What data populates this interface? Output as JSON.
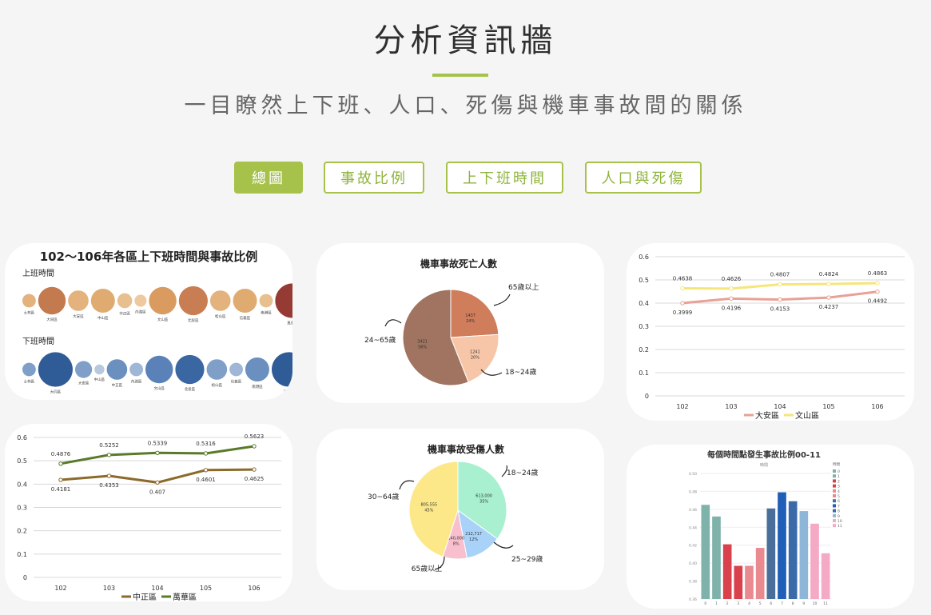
{
  "header": {
    "title": "分析資訊牆",
    "subtitle": "一目瞭然上下班、人口、死傷與機車事故間的關係"
  },
  "tabs": [
    {
      "label": "總圖",
      "active": true
    },
    {
      "label": "事故比例",
      "active": false
    },
    {
      "label": "上下班時間",
      "active": false
    },
    {
      "label": "人口與死傷",
      "active": false
    }
  ],
  "colors": {
    "accent": "#a6c24a"
  },
  "chart_data": [
    {
      "type": "bubble",
      "title": "102～106年各區上下班時間與事故比例",
      "groups": [
        {
          "name": "上班時間",
          "labels": [
            "士林區",
            "大同區",
            "大安區",
            "中山區",
            "中正區",
            "內湖區",
            "文山區",
            "北投區",
            "松山區",
            "信義區",
            "南港區",
            "萬華區"
          ],
          "values": [
            1,
            3,
            2,
            2.5,
            1.2,
            0.8,
            3,
            3.2,
            2,
            2.5,
            1,
            4
          ]
        },
        {
          "name": "下班時間",
          "labels": [
            "士林區",
            "大同區",
            "大安區",
            "中山區",
            "中正區",
            "內湖區",
            "文山區",
            "北投區",
            "松山區",
            "信義區",
            "南港區",
            "萬華區"
          ],
          "values": [
            1,
            4,
            1.5,
            0.5,
            2,
            1,
            3,
            3.2,
            2,
            1,
            2.5,
            4
          ]
        }
      ]
    },
    {
      "type": "pie",
      "title": "機車事故死亡人數",
      "slices": [
        {
          "label": "65歲以上",
          "value": 1437,
          "pct": "24%",
          "color": "#d07d5c"
        },
        {
          "label": "18~24歲",
          "value": 1241,
          "pct": "20%",
          "color": "#f7c6a8"
        },
        {
          "label": "24~65歲",
          "value": 3421,
          "pct": "56%",
          "color": "#a07460"
        }
      ]
    },
    {
      "type": "line",
      "x": [
        "102",
        "103",
        "104",
        "105",
        "106"
      ],
      "ylim": [
        0,
        0.6
      ],
      "yticks": [
        "0",
        "0.1",
        "0.2",
        "0.3",
        "0.4",
        "0.5",
        "0.6"
      ],
      "series": [
        {
          "name": "大安區",
          "color": "#e8a196",
          "values": [
            0.3999,
            0.4196,
            0.4153,
            0.4237,
            0.4492
          ]
        },
        {
          "name": "文山區",
          "color": "#f5e67a",
          "values": [
            0.4638,
            0.4626,
            0.4807,
            0.4824,
            0.4863
          ]
        }
      ],
      "labels": [
        {
          "series": 0,
          "text": [
            "0.3999",
            "0.4196",
            "0.4153",
            "0.4237",
            "0.4492"
          ]
        },
        {
          "series": 1,
          "text": [
            "0.4638",
            "0.4626",
            "0.4807",
            "0.4824",
            "0.4863"
          ]
        }
      ]
    },
    {
      "type": "line",
      "x": [
        "102",
        "103",
        "104",
        "105",
        "106"
      ],
      "ylim": [
        0,
        0.6
      ],
      "yticks": [
        "0",
        "0.1",
        "0.2",
        "0.3",
        "0.4",
        "0.5",
        "0.6"
      ],
      "series": [
        {
          "name": "中正區",
          "color": "#8b6a2b",
          "values": [
            0.4181,
            0.4353,
            0.407,
            0.4601,
            0.4625
          ]
        },
        {
          "name": "萬華區",
          "color": "#5a7a2a",
          "values": [
            0.4876,
            0.5252,
            0.5339,
            0.5316,
            0.5623
          ]
        }
      ],
      "labels": [
        {
          "series": 0,
          "text": [
            "0.4181",
            "0.4353",
            "0.407",
            "0.4601",
            "0.4625"
          ]
        },
        {
          "series": 1,
          "text": [
            "0.4876",
            "0.5252",
            "0.5339",
            "0.5316",
            "0.5623"
          ]
        }
      ]
    },
    {
      "type": "pie",
      "title": "機車事故受傷人數",
      "slices": [
        {
          "label": "18~24歲",
          "value": "613,000",
          "pct": "35%",
          "color": "#a8f0d0"
        },
        {
          "label": "25~29歲",
          "value": "212,717",
          "pct": "12%",
          "color": "#a8d2f8"
        },
        {
          "label": "65歲以上",
          "value": "140,000",
          "pct": "8%",
          "color": "#f8c0cf"
        },
        {
          "label": "30~64歲",
          "value": "805,555",
          "pct": "45%",
          "color": "#fce889"
        }
      ]
    },
    {
      "type": "bar",
      "title": "每個時間點發生事故比例00-11",
      "subtitle": "時間",
      "legend_title": "時間",
      "categories": [
        "0",
        "1",
        "2",
        "3",
        "4",
        "5",
        "6",
        "7",
        "8",
        "9",
        "10",
        "11"
      ],
      "values": [
        0.465,
        0.452,
        0.421,
        0.397,
        0.397,
        0.417,
        0.461,
        0.479,
        0.469,
        0.458,
        0.444,
        0.411
      ],
      "colors": [
        "#7fb2ab",
        "#7fb2ab",
        "#d9424c",
        "#d9424c",
        "#e88a8f",
        "#e88a8f",
        "#4a6f9a",
        "#1f5fb8",
        "#3a6aa8",
        "#8eb6d8",
        "#f4aac4",
        "#f4aac4"
      ],
      "ylim": [
        0.36,
        0.5
      ],
      "yticks": [
        "0.36",
        "0.38",
        "0.40",
        "0.42",
        "0.44",
        "0.46",
        "0.48",
        "0.50"
      ]
    }
  ]
}
